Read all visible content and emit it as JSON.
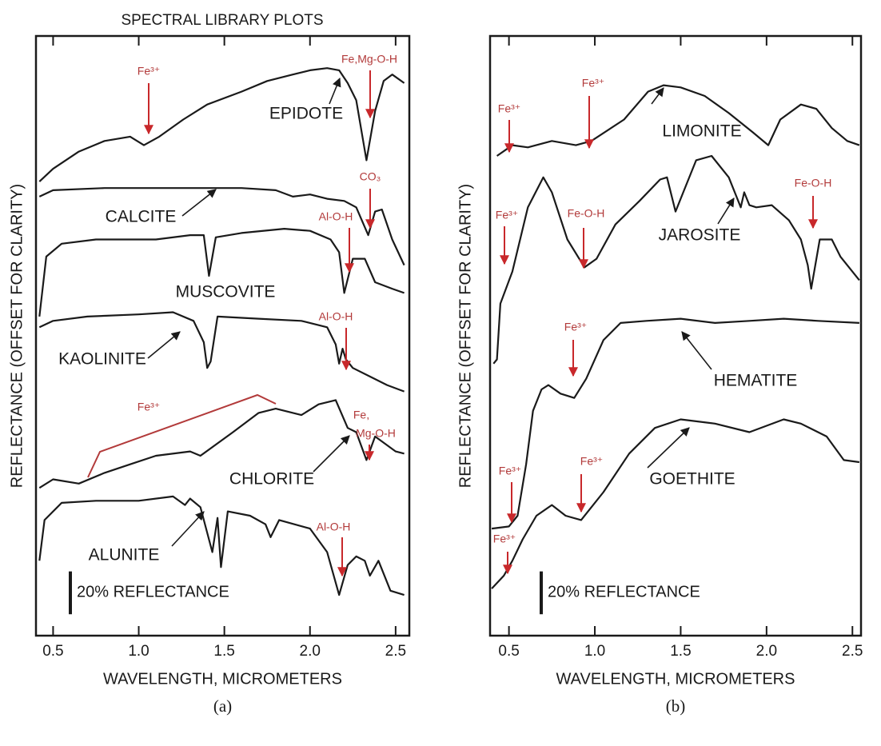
{
  "chart_data": [
    {
      "type": "line",
      "title": "SPECTRAL LIBRARY PLOTS",
      "xlabel": "WAVELENGTH, MICROMETERS",
      "ylabel": "REFLECTANCE (OFFSET FOR CLARITY)",
      "caption": "(a)",
      "xlim": [
        0.4,
        2.58
      ],
      "xticks": [
        0.5,
        {
          "value": 1,
          "label": "1.0"
        },
        1.5,
        {
          "value": 2,
          "label": "2.0"
        },
        2.5
      ],
      "ylim": [
        0,
        280
      ],
      "scale_bar": 20,
      "scale_label": "20% REFLECTANCE",
      "series": [
        {
          "name": "EPIDOTE",
          "color": "#1a1a1a",
          "x": [
            0.42,
            0.5,
            0.65,
            0.8,
            0.95,
            1.03,
            1.12,
            1.26,
            1.4,
            1.6,
            1.75,
            1.9,
            2.0,
            2.1,
            2.17,
            2.22,
            2.27,
            2.33,
            2.38,
            2.43,
            2.48,
            2.55
          ],
          "values": [
            212,
            218,
            226,
            231,
            233,
            229,
            233,
            241,
            248,
            254,
            259,
            262,
            264,
            265,
            264,
            258,
            250,
            222,
            245,
            259,
            262,
            258
          ]
        },
        {
          "name": "CALCITE",
          "color": "#1a1a1a",
          "x": [
            0.42,
            0.5,
            0.8,
            1.0,
            1.2,
            1.4,
            1.6,
            1.8,
            1.9,
            2.0,
            2.1,
            2.2,
            2.27,
            2.34,
            2.38,
            2.42,
            2.48,
            2.55
          ],
          "values": [
            205,
            208,
            209,
            209,
            209,
            209,
            209,
            208,
            205,
            206,
            204,
            203,
            200,
            187,
            198,
            199,
            185,
            173
          ]
        },
        {
          "name": "MUSCOVITE",
          "color": "#1a1a1a",
          "x": [
            0.42,
            0.46,
            0.55,
            0.75,
            1.1,
            1.3,
            1.38,
            1.41,
            1.45,
            1.6,
            1.85,
            2.0,
            2.12,
            2.17,
            2.2,
            2.25,
            2.32,
            2.38,
            2.48,
            2.55
          ],
          "values": [
            149,
            177,
            183,
            185,
            185,
            187,
            187,
            168,
            186,
            188,
            190,
            189,
            185,
            179,
            160,
            176,
            176,
            165,
            162,
            160
          ]
        },
        {
          "name": "KAOLINITE",
          "color": "#1a1a1a",
          "x": [
            0.42,
            0.5,
            0.7,
            1.0,
            1.2,
            1.32,
            1.38,
            1.4,
            1.42,
            1.46,
            1.7,
            1.95,
            2.1,
            2.15,
            2.17,
            2.19,
            2.21,
            2.25,
            2.35,
            2.45,
            2.55
          ],
          "values": [
            144,
            147,
            149,
            150,
            151,
            147,
            137,
            125,
            128,
            149,
            148,
            147,
            144,
            136,
            127,
            134,
            129,
            125,
            121,
            117,
            114
          ]
        },
        {
          "name": "CHLORITE",
          "color": "#1a1a1a",
          "x": [
            0.42,
            0.5,
            0.65,
            0.8,
            0.95,
            1.1,
            1.3,
            1.36,
            1.55,
            1.7,
            1.8,
            1.95,
            2.05,
            2.15,
            2.22,
            2.27,
            2.33,
            2.38,
            2.5,
            2.55
          ],
          "values": [
            69,
            73,
            71,
            76,
            80,
            84,
            86,
            84,
            95,
            104,
            106,
            103,
            108,
            110,
            97,
            95,
            82,
            93,
            86,
            85
          ]
        },
        {
          "name": "ALUNITE",
          "color": "#1a1a1a",
          "x": [
            0.42,
            0.45,
            0.55,
            0.75,
            1.0,
            1.2,
            1.27,
            1.3,
            1.36,
            1.43,
            1.46,
            1.48,
            1.52,
            1.65,
            1.74,
            1.77,
            1.82,
            2.0,
            2.1,
            2.17,
            2.22,
            2.27,
            2.32,
            2.35,
            2.4,
            2.47,
            2.55
          ],
          "values": [
            35,
            54,
            62,
            63,
            63,
            65,
            61,
            64,
            60,
            39,
            55,
            32,
            58,
            56,
            52,
            46,
            54,
            50,
            39,
            19,
            33,
            37,
            35,
            28,
            35,
            21,
            19
          ]
        }
      ],
      "annotations": [
        {
          "text": "Fe³⁺",
          "color": "#b23a3a"
        },
        {
          "text": "Fe,Mg-O-H",
          "color": "#b23a3a"
        },
        {
          "text": "CO₃",
          "color": "#b23a3a"
        },
        {
          "text": "Al-O-H",
          "color": "#b23a3a"
        },
        {
          "text": "Al-O-H",
          "color": "#b23a3a"
        },
        {
          "text": "Fe³⁺",
          "color": "#b23a3a"
        },
        {
          "text": "Fe,",
          "color": "#b23a3a"
        },
        {
          "text": "Mg-O-H",
          "color": "#b23a3a"
        },
        {
          "text": "Al-O-H",
          "color": "#b23a3a"
        }
      ]
    },
    {
      "type": "line",
      "xlabel": "WAVELENGTH, MICROMETERS",
      "ylabel": "REFLECTANCE (OFFSET FOR CLARITY)",
      "caption": "(b)",
      "xlim": [
        0.39,
        2.55
      ],
      "xticks": [
        0.5,
        {
          "value": 1,
          "label": "1.0"
        },
        1.5,
        {
          "value": 2,
          "label": "2.0"
        },
        2.5
      ],
      "ylim": [
        0,
        280
      ],
      "scale_bar": 20,
      "scale_label": "20% REFLECTANCE",
      "series": [
        {
          "name": "LIMONITE",
          "color": "#1a1a1a",
          "x": [
            0.43,
            0.52,
            0.61,
            0.75,
            0.89,
            0.98,
            1.17,
            1.31,
            1.4,
            1.5,
            1.64,
            1.78,
            1.92,
            2.01,
            2.08,
            2.2,
            2.29,
            2.38,
            2.47,
            2.54
          ],
          "values": [
            224,
            229,
            228,
            231,
            229,
            231,
            241,
            254,
            257,
            256,
            252,
            244,
            235,
            229,
            241,
            248,
            246,
            237,
            231,
            229
          ]
        },
        {
          "name": "JAROSITE",
          "color": "#1a1a1a",
          "x": [
            0.41,
            0.43,
            0.45,
            0.52,
            0.61,
            0.7,
            0.75,
            0.84,
            0.94,
            1.01,
            1.12,
            1.26,
            1.38,
            1.42,
            1.47,
            1.52,
            1.59,
            1.68,
            1.78,
            1.85,
            1.87,
            1.9,
            1.94,
            2.03,
            2.13,
            2.2,
            2.24,
            2.26,
            2.31,
            2.38,
            2.43,
            2.54
          ],
          "values": [
            127,
            129,
            155,
            170,
            200,
            214,
            207,
            185,
            172,
            176,
            192,
            203,
            213,
            214,
            198,
            208,
            222,
            224,
            214,
            200,
            207,
            201,
            200,
            201,
            194,
            185,
            173,
            162,
            185,
            185,
            177,
            166
          ]
        },
        {
          "name": "HEMATITE",
          "color": "#1a1a1a",
          "x": [
            0.4,
            0.5,
            0.55,
            0.6,
            0.64,
            0.69,
            0.73,
            0.8,
            0.88,
            0.95,
            1.05,
            1.15,
            1.3,
            1.5,
            1.7,
            1.9,
            2.1,
            2.3,
            2.54
          ],
          "values": [
            50,
            51,
            56,
            80,
            105,
            115,
            117,
            113,
            111,
            120,
            138,
            146,
            147,
            148,
            146,
            147,
            148,
            147,
            146
          ]
        },
        {
          "name": "GOETHITE",
          "color": "#1a1a1a",
          "x": [
            0.4,
            0.47,
            0.52,
            0.58,
            0.66,
            0.75,
            0.83,
            0.92,
            1.05,
            1.2,
            1.35,
            1.5,
            1.7,
            1.9,
            2.1,
            2.2,
            2.35,
            2.45,
            2.54
          ],
          "values": [
            22,
            28,
            35,
            45,
            56,
            61,
            56,
            54,
            67,
            85,
            97,
            101,
            99,
            95,
            101,
            99,
            93,
            82,
            81
          ]
        }
      ],
      "annotations": [
        {
          "text": "Fe³⁺",
          "color": "#b23a3a"
        },
        {
          "text": "Fe³⁺",
          "color": "#b23a3a"
        },
        {
          "text": "Fe³⁺",
          "color": "#b23a3a"
        },
        {
          "text": "Fe-O-H",
          "color": "#b23a3a"
        },
        {
          "text": "Fe-O-H",
          "color": "#b23a3a"
        },
        {
          "text": "Fe³⁺",
          "color": "#b23a3a"
        },
        {
          "text": "Fe³⁺",
          "color": "#b23a3a"
        },
        {
          "text": "Fe³⁺",
          "color": "#b23a3a"
        },
        {
          "text": "Fe³⁺",
          "color": "#b23a3a"
        }
      ]
    }
  ]
}
